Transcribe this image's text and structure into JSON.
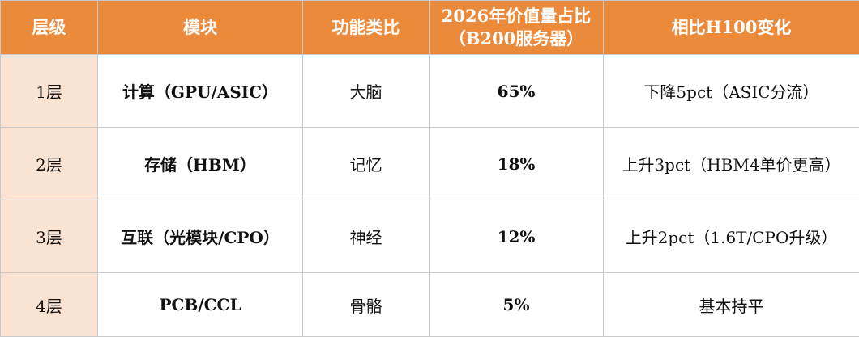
{
  "table": {
    "headers": {
      "level": "层级",
      "module": "模块",
      "analogy": "功能类比",
      "share_line1": "2026年价值量占比",
      "share_line2": "（B200服务器）",
      "change": "相比H100变化"
    },
    "rows": [
      {
        "level": "1层",
        "module": "计算（GPU/ASIC）",
        "analogy": "大脑",
        "share": "65%",
        "change": "下降5pct（ASIC分流）"
      },
      {
        "level": "2层",
        "module": "存储（HBM）",
        "analogy": "记忆",
        "share": "18%",
        "change": "上升3pct（HBM4单价更高）"
      },
      {
        "level": "3层",
        "module": "互联（光模块/CPO）",
        "analogy": "神经",
        "share": "12%",
        "change": "上升2pct（1.6T/CPO升级）"
      },
      {
        "level": "4层",
        "module": "PCB/CCL",
        "analogy": "骨骼",
        "share": "5%",
        "change": "基本持平"
      }
    ]
  },
  "colors": {
    "header_bg": "#ec8a3c",
    "header_text": "#ffffff",
    "level_col_bg": "#fbe3d3",
    "border": "#c9c9c9"
  }
}
